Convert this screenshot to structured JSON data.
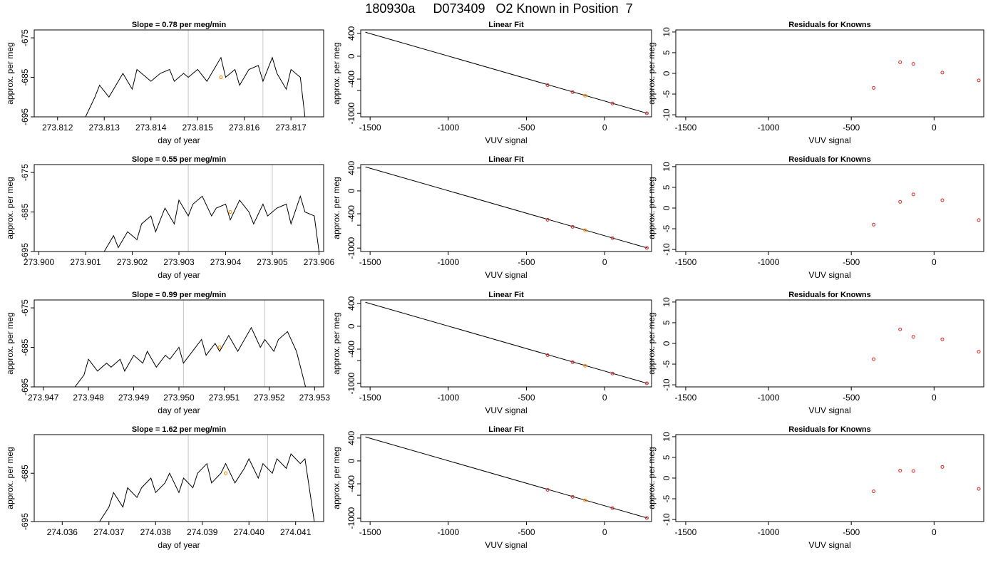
{
  "page": {
    "title": "180930a     D073409   O2 Known in Position  7"
  },
  "colors": {
    "trace": "#000000",
    "vline": "#c8c8c8",
    "marker_orange": "#ff8c00",
    "marker_red": "#d62728",
    "fit_line": "#000000"
  },
  "chart_data": [
    {
      "type": "line",
      "panel": "row1-timeseries",
      "title": "Slope =  0.78  per meg/min",
      "xlabel": "day of year",
      "ylabel": "approx. per meg",
      "xlim": [
        273.8115,
        273.8177
      ],
      "ylim": [
        -695,
        -673
      ],
      "x_ticks": [
        273.812,
        273.813,
        273.814,
        273.815,
        273.816,
        273.817
      ],
      "x_tick_labels": [
        "273.812",
        "273.813",
        "273.814",
        "273.815",
        "273.816",
        "273.817"
      ],
      "y_ticks": [
        -695,
        -685,
        -675
      ],
      "y_tick_labels": [
        "-695",
        "-685",
        "-675"
      ],
      "vlines": [
        273.8148,
        273.8164
      ],
      "series": [
        {
          "x": [
            273.8126,
            273.8128,
            273.8129,
            273.8131,
            273.8133,
            273.8134,
            273.8136,
            273.8137,
            273.8139,
            273.814,
            273.8142,
            273.8144,
            273.8145,
            273.8147,
            273.8148,
            273.815,
            273.8152,
            273.8153,
            273.8155,
            273.8156,
            273.8158,
            273.8159,
            273.8161,
            273.8163,
            273.8164,
            273.8166,
            273.8167,
            273.8169,
            273.817,
            273.8172,
            273.8173
          ],
          "y": [
            -695,
            -690,
            -687,
            -690,
            -686,
            -684,
            -688,
            -683,
            -685,
            -686,
            -684,
            -683,
            -686,
            -684,
            -685,
            -683,
            -686,
            -684,
            -680,
            -685,
            -683,
            -687,
            -683,
            -682,
            -686,
            -680,
            -684,
            -688,
            -683,
            -685,
            -695
          ]
        }
      ],
      "marker": {
        "x": 273.8155,
        "y": -685
      }
    },
    {
      "type": "scatter",
      "panel": "row1-linear-fit",
      "title": "Linear Fit",
      "xlabel": "VUV signal",
      "ylabel": "approx. per meg",
      "xlim": [
        -1560,
        300
      ],
      "ylim": [
        -1060,
        460
      ],
      "x_ticks": [
        -1500,
        -1000,
        -500,
        0
      ],
      "x_tick_labels": [
        "-1500",
        "-1000",
        "-500",
        "0"
      ],
      "y_ticks": [
        -1000,
        -600,
        -400,
        0,
        400
      ],
      "y_tick_labels": [
        "-1000",
        "",
        "-400",
        "0",
        "400"
      ],
      "fit": {
        "x": [
          -1530,
          275
        ],
        "y": [
          420,
          -1000
        ]
      },
      "points": {
        "x": [
          -365,
          -205,
          -125,
          50,
          270
        ],
        "y": [
          -505,
          -628,
          -690,
          -826,
          -998
        ]
      },
      "highlight_index": 2
    },
    {
      "type": "scatter",
      "panel": "row1-residuals",
      "title": "Residuals for Knowns",
      "xlabel": "VUV signal",
      "ylabel": "approx. per meg",
      "xlim": [
        -1560,
        300
      ],
      "ylim": [
        -10.5,
        10.5
      ],
      "x_ticks": [
        -1500,
        -1000,
        -500,
        0
      ],
      "x_tick_labels": [
        "-1500",
        "-1000",
        "-500",
        "0"
      ],
      "y_ticks": [
        -10,
        -5,
        0,
        5,
        10
      ],
      "y_tick_labels": [
        "-10",
        "-5",
        "0",
        "5",
        "10"
      ],
      "points": {
        "x": [
          -365,
          -205,
          -125,
          50,
          270
        ],
        "y": [
          -3.5,
          2.7,
          2.3,
          0.2,
          -1.7
        ]
      }
    },
    {
      "type": "line",
      "panel": "row2-timeseries",
      "title": "Slope =  0.55  per meg/min",
      "xlabel": "day of year",
      "ylabel": "approx. per meg",
      "xlim": [
        273.8999,
        273.9061
      ],
      "ylim": [
        -695,
        -673
      ],
      "x_ticks": [
        273.9,
        273.901,
        273.902,
        273.903,
        273.904,
        273.905,
        273.906
      ],
      "x_tick_labels": [
        "273.900",
        "273.901",
        "273.902",
        "273.903",
        "273.904",
        "273.905",
        "273.906"
      ],
      "y_ticks": [
        -695,
        -685,
        -675
      ],
      "y_tick_labels": [
        "-695",
        "-685",
        "-675"
      ],
      "vlines": [
        273.9032,
        273.905
      ],
      "series": [
        {
          "x": [
            273.9014,
            273.9016,
            273.9017,
            273.9019,
            273.9021,
            273.9022,
            273.9024,
            273.9025,
            273.9027,
            273.9029,
            273.903,
            273.9032,
            273.9033,
            273.9035,
            273.9037,
            273.9038,
            273.904,
            273.9041,
            273.9043,
            273.9045,
            273.9046,
            273.9048,
            273.9049,
            273.9051,
            273.9053,
            273.9054,
            273.9056,
            273.9057,
            273.9059,
            273.906
          ],
          "y": [
            -695,
            -691,
            -694,
            -690,
            -692,
            -688,
            -686,
            -690,
            -684,
            -688,
            -682,
            -686,
            -683,
            -681,
            -686,
            -684,
            -683,
            -687,
            -682,
            -685,
            -688,
            -683,
            -686,
            -684,
            -683,
            -688,
            -681,
            -685,
            -686,
            -695
          ]
        }
      ],
      "marker": {
        "x": 273.9041,
        "y": -685
      }
    },
    {
      "type": "scatter",
      "panel": "row2-linear-fit",
      "title": "Linear Fit",
      "xlabel": "VUV signal",
      "ylabel": "approx. per meg",
      "xlim": [
        -1560,
        300
      ],
      "ylim": [
        -1060,
        460
      ],
      "x_ticks": [
        -1500,
        -1000,
        -500,
        0
      ],
      "x_tick_labels": [
        "-1500",
        "-1000",
        "-500",
        "0"
      ],
      "y_ticks": [
        -1000,
        -600,
        -400,
        0,
        400
      ],
      "y_tick_labels": [
        "-1000",
        "",
        "-400",
        "0",
        "400"
      ],
      "fit": {
        "x": [
          -1530,
          275
        ],
        "y": [
          420,
          -1000
        ]
      },
      "points": {
        "x": [
          -365,
          -205,
          -125,
          50,
          270
        ],
        "y": [
          -505,
          -628,
          -690,
          -826,
          -998
        ]
      },
      "highlight_index": 2
    },
    {
      "type": "scatter",
      "panel": "row2-residuals",
      "title": "Residuals for Knowns",
      "xlabel": "VUV signal",
      "ylabel": "approx. per meg",
      "xlim": [
        -1560,
        300
      ],
      "ylim": [
        -10.5,
        10.5
      ],
      "x_ticks": [
        -1500,
        -1000,
        -500,
        0
      ],
      "x_tick_labels": [
        "-1500",
        "-1000",
        "-500",
        "0"
      ],
      "y_ticks": [
        -10,
        -5,
        0,
        5,
        10
      ],
      "y_tick_labels": [
        "-10",
        "-5",
        "0",
        "5",
        "10"
      ],
      "points": {
        "x": [
          -365,
          -205,
          -125,
          50,
          270
        ],
        "y": [
          -4.0,
          1.5,
          3.3,
          1.9,
          -2.9
        ]
      }
    },
    {
      "type": "line",
      "panel": "row3-timeseries",
      "title": "Slope =  0.99  per meg/min",
      "xlabel": "day of year",
      "ylabel": "approx. per meg",
      "xlim": [
        273.9468,
        273.9532
      ],
      "ylim": [
        -695,
        -673
      ],
      "x_ticks": [
        273.947,
        273.948,
        273.949,
        273.95,
        273.951,
        273.952,
        273.953
      ],
      "x_tick_labels": [
        "273.947",
        "273.948",
        "273.949",
        "273.950",
        "273.951",
        "273.952",
        "273.953"
      ],
      "y_ticks": [
        -695,
        -685,
        -675
      ],
      "y_tick_labels": [
        "-695",
        "-685",
        "-675"
      ],
      "vlines": [
        273.9501,
        273.9519
      ],
      "series": [
        {
          "x": [
            273.9477,
            273.9479,
            273.948,
            273.9482,
            273.9484,
            273.9485,
            273.9487,
            273.9488,
            273.949,
            273.9492,
            273.9493,
            273.9495,
            273.9497,
            273.9498,
            273.95,
            273.9501,
            273.9503,
            273.9505,
            273.9506,
            273.9508,
            273.9509,
            273.9511,
            273.9513,
            273.9514,
            273.9516,
            273.9518,
            273.9519,
            273.9521,
            273.9522,
            273.9524,
            273.9526,
            273.9528
          ],
          "y": [
            -695,
            -692,
            -688,
            -691,
            -689,
            -690,
            -688,
            -691,
            -687,
            -689,
            -686,
            -690,
            -687,
            -688,
            -685,
            -689,
            -686,
            -683,
            -687,
            -684,
            -686,
            -682,
            -686,
            -684,
            -680,
            -685,
            -683,
            -686,
            -683,
            -681,
            -686,
            -695
          ]
        }
      ],
      "marker": {
        "x": 273.9509,
        "y": -685
      }
    },
    {
      "type": "scatter",
      "panel": "row3-linear-fit",
      "title": "Linear Fit",
      "xlabel": "VUV signal",
      "ylabel": "approx. per meg",
      "xlim": [
        -1560,
        300
      ],
      "ylim": [
        -1060,
        460
      ],
      "x_ticks": [
        -1500,
        -1000,
        -500,
        0
      ],
      "x_tick_labels": [
        "-1500",
        "-1000",
        "-500",
        "0"
      ],
      "y_ticks": [
        -1000,
        -600,
        -400,
        0,
        400
      ],
      "y_tick_labels": [
        "-1000",
        "",
        "-400",
        "0",
        "400"
      ],
      "fit": {
        "x": [
          -1530,
          275
        ],
        "y": [
          420,
          -1000
        ]
      },
      "points": {
        "x": [
          -365,
          -205,
          -125,
          50,
          270
        ],
        "y": [
          -505,
          -628,
          -690,
          -826,
          -998
        ]
      },
      "highlight_index": 2
    },
    {
      "type": "scatter",
      "panel": "row3-residuals",
      "title": "Residuals for Knowns",
      "xlabel": "VUV signal",
      "ylabel": "approx. per meg",
      "xlim": [
        -1560,
        300
      ],
      "ylim": [
        -10.5,
        10.5
      ],
      "x_ticks": [
        -1500,
        -1000,
        -500,
        0
      ],
      "x_tick_labels": [
        "-1500",
        "-1000",
        "-500",
        "0"
      ],
      "y_ticks": [
        -10,
        -5,
        0,
        5,
        10
      ],
      "y_tick_labels": [
        "-10",
        "-5",
        "0",
        "5",
        "10"
      ],
      "points": {
        "x": [
          -365,
          -205,
          -125,
          50,
          270
        ],
        "y": [
          -3.8,
          3.4,
          1.6,
          1.0,
          -2.0
        ]
      }
    },
    {
      "type": "line",
      "panel": "row4-timeseries",
      "title": "Slope =  1.62  per meg/min",
      "xlabel": "day of year",
      "ylabel": "approx. per meg",
      "xlim": [
        274.0354,
        274.0416
      ],
      "ylim": [
        -695,
        -677
      ],
      "x_ticks": [
        274.036,
        274.037,
        274.038,
        274.039,
        274.04,
        274.041
      ],
      "x_tick_labels": [
        "274.036",
        "274.037",
        "274.038",
        "274.039",
        "274.040",
        "274.041"
      ],
      "y_ticks": [
        -695,
        -685
      ],
      "y_tick_labels": [
        "-695",
        "-685"
      ],
      "vlines": [
        274.0387,
        274.0404
      ],
      "series": [
        {
          "x": [
            274.0368,
            274.037,
            274.0371,
            274.0373,
            274.0374,
            274.0376,
            274.0377,
            274.0379,
            274.038,
            274.0382,
            274.0383,
            274.0385,
            274.0386,
            274.0388,
            274.0389,
            274.0391,
            274.0392,
            274.0394,
            274.0395,
            274.0397,
            274.0399,
            274.04,
            274.0402,
            274.0403,
            274.0405,
            274.0406,
            274.0408,
            274.0409,
            274.0411,
            274.0412,
            274.0414
          ],
          "y": [
            -695,
            -692,
            -689,
            -692,
            -688,
            -690,
            -688,
            -686,
            -689,
            -687,
            -685,
            -689,
            -686,
            -688,
            -685,
            -683,
            -687,
            -685,
            -683,
            -687,
            -684,
            -682,
            -686,
            -683,
            -685,
            -682,
            -684,
            -681,
            -683,
            -682,
            -695
          ]
        }
      ],
      "marker": {
        "x": 274.0395,
        "y": -685
      }
    },
    {
      "type": "scatter",
      "panel": "row4-linear-fit",
      "title": "Linear Fit",
      "xlabel": "VUV signal",
      "ylabel": "approx. per meg",
      "xlim": [
        -1560,
        300
      ],
      "ylim": [
        -1060,
        460
      ],
      "x_ticks": [
        -1500,
        -1000,
        -500,
        0
      ],
      "x_tick_labels": [
        "-1500",
        "-1000",
        "-500",
        "0"
      ],
      "y_ticks": [
        -1000,
        -600,
        -400,
        0,
        400
      ],
      "y_tick_labels": [
        "-1000",
        "",
        "-400",
        "0",
        "400"
      ],
      "fit": {
        "x": [
          -1530,
          275
        ],
        "y": [
          420,
          -1000
        ]
      },
      "points": {
        "x": [
          -365,
          -205,
          -125,
          50,
          270
        ],
        "y": [
          -505,
          -628,
          -690,
          -826,
          -998
        ]
      },
      "highlight_index": 2
    },
    {
      "type": "scatter",
      "panel": "row4-residuals",
      "title": "Residuals for Knowns",
      "xlabel": "VUV signal",
      "ylabel": "approx. per meg",
      "xlim": [
        -1560,
        300
      ],
      "ylim": [
        -10.5,
        10.5
      ],
      "x_ticks": [
        -1500,
        -1000,
        -500,
        0
      ],
      "x_tick_labels": [
        "-1500",
        "-1000",
        "-500",
        "0"
      ],
      "y_ticks": [
        -10,
        -5,
        0,
        5,
        10
      ],
      "y_tick_labels": [
        "-10",
        "-5",
        "0",
        "5",
        "10"
      ],
      "points": {
        "x": [
          -365,
          -205,
          -125,
          50,
          270
        ],
        "y": [
          -3.2,
          1.8,
          1.7,
          2.7,
          -2.6
        ]
      }
    }
  ]
}
